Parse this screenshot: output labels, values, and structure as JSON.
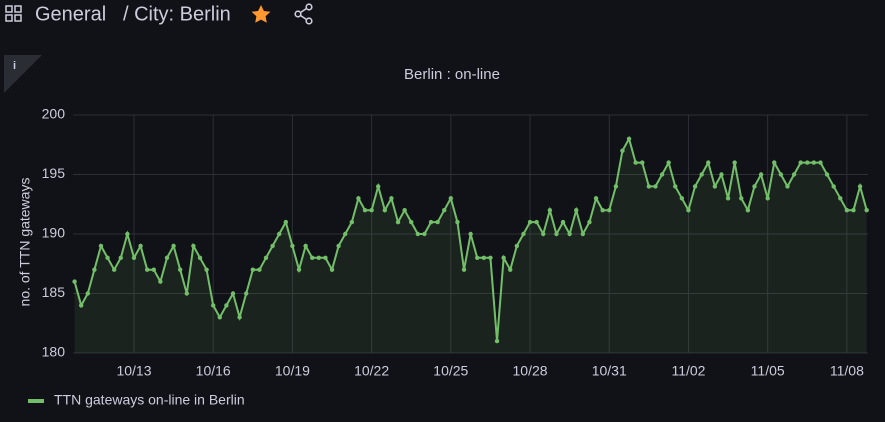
{
  "header": {
    "folder": "General",
    "dashboard": "/ City: Berlin"
  },
  "panel": {
    "info": "i"
  },
  "chart_data": {
    "type": "line",
    "title": "Berlin : on-line",
    "y_label": "no. of TTN gateways",
    "x": [
      -2.25,
      -2,
      -1.75,
      -1.5,
      -1.25,
      -1,
      -0.75,
      -0.5,
      -0.25,
      0,
      0.25,
      0.5,
      0.75,
      1,
      1.25,
      1.5,
      1.75,
      2,
      2.25,
      2.5,
      2.75,
      3,
      3.25,
      3.5,
      3.75,
      4,
      4.25,
      4.5,
      4.75,
      5,
      5.25,
      5.5,
      5.75,
      6,
      6.25,
      6.5,
      6.75,
      7,
      7.25,
      7.5,
      7.75,
      8,
      8.25,
      8.5,
      8.75,
      9,
      9.25,
      9.5,
      9.75,
      10,
      10.25,
      10.5,
      10.75,
      11,
      11.25,
      11.5,
      11.75,
      12,
      12.25,
      12.5,
      12.75,
      13,
      13.25,
      13.5,
      13.75,
      14,
      14.25,
      14.5,
      14.75,
      15,
      15.25,
      15.5,
      15.75,
      16,
      16.25,
      16.5,
      16.75,
      17,
      17.25,
      17.5,
      17.75,
      18,
      18.25,
      18.5,
      18.75,
      19,
      19.25,
      19.5,
      19.75,
      20,
      20.25,
      20.5,
      20.75,
      21,
      21.25,
      21.5,
      21.75,
      22,
      22.25,
      22.5,
      22.75,
      23,
      23.25,
      23.5,
      23.75,
      24,
      24.25,
      24.5,
      24.75,
      25,
      25.25,
      25.5,
      25.75,
      26,
      26.25,
      26.5,
      26.75,
      27,
      27.25,
      27.5,
      27.75
    ],
    "series": [
      {
        "name": "TTN gateways on-line in Berlin",
        "color": "#73bf69",
        "values": [
          186,
          184,
          185,
          187,
          189,
          188,
          187,
          188,
          190,
          188,
          189,
          187,
          187,
          186,
          188,
          189,
          187,
          185,
          189,
          188,
          187,
          184,
          183,
          184,
          185,
          183,
          185,
          187,
          187,
          188,
          189,
          190,
          191,
          189,
          187,
          189,
          188,
          188,
          188,
          187,
          189,
          190,
          191,
          193,
          192,
          192,
          194,
          192,
          193,
          191,
          192,
          191,
          190,
          190,
          191,
          191,
          192,
          193,
          191,
          187,
          190,
          188,
          188,
          188,
          181,
          188,
          187,
          189,
          190,
          191,
          191,
          190,
          192,
          190,
          191,
          190,
          192,
          190,
          191,
          193,
          192,
          192,
          194,
          197,
          198,
          196,
          196,
          194,
          194,
          195,
          196,
          194,
          193,
          192,
          194,
          195,
          196,
          194,
          195,
          193,
          196,
          193,
          192,
          194,
          195,
          193,
          196,
          195,
          194,
          195,
          196,
          196,
          196,
          196,
          195,
          194,
          193,
          192,
          192,
          194,
          192
        ]
      }
    ],
    "xlim": [
      -2.31,
      27.8
    ],
    "xticks": [
      {
        "value": 0,
        "label": "10/13"
      },
      {
        "value": 3,
        "label": "10/16"
      },
      {
        "value": 6,
        "label": "10/19"
      },
      {
        "value": 9,
        "label": "10/22"
      },
      {
        "value": 12,
        "label": "10/25"
      },
      {
        "value": 15,
        "label": "10/28"
      },
      {
        "value": 18,
        "label": "10/31"
      },
      {
        "value": 21,
        "label": "11/02"
      },
      {
        "value": 24,
        "label": "11/05"
      },
      {
        "value": 27,
        "label": "11/08"
      }
    ],
    "ylim": [
      180,
      200
    ],
    "yticks": [
      180,
      185,
      190,
      195,
      200
    ],
    "grid": true,
    "legend": "bottom-left"
  }
}
